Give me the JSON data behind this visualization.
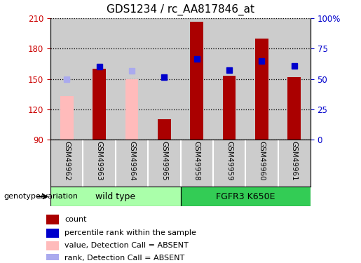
{
  "title": "GDS1234 / rc_AA817846_at",
  "categories": [
    "GSM49962",
    "GSM49963",
    "GSM49964",
    "GSM49965",
    "GSM49958",
    "GSM49959",
    "GSM49960",
    "GSM49961"
  ],
  "ylim": [
    90,
    210
  ],
  "yticks": [
    90,
    120,
    150,
    180,
    210
  ],
  "y2ticks_pct": [
    0,
    25,
    50,
    75,
    100
  ],
  "y2ticklabels": [
    "0",
    "25",
    "50",
    "75",
    "100%"
  ],
  "bar_values": [
    null,
    160,
    null,
    110,
    207,
    153,
    190,
    152
  ],
  "bar_color": "#aa0000",
  "bar_absent_values": [
    133,
    null,
    150,
    null,
    null,
    null,
    null,
    null
  ],
  "bar_absent_color": "#ffbbbb",
  "rank_present": [
    null,
    162,
    null,
    152,
    170,
    159,
    168,
    163
  ],
  "rank_absent": [
    150,
    null,
    158,
    null,
    null,
    null,
    null,
    null
  ],
  "rank_present_color": "#0000cc",
  "rank_absent_color": "#aaaaee",
  "wild_type_label": "wild type",
  "fgfr3_label": "FGFR3 K650E",
  "wild_type_color": "#aaffaa",
  "fgfr3_color": "#33cc55",
  "group_label": "genotype/variation",
  "legend_items": [
    {
      "label": "count",
      "color": "#aa0000"
    },
    {
      "label": "percentile rank within the sample",
      "color": "#0000cc"
    },
    {
      "label": "value, Detection Call = ABSENT",
      "color": "#ffbbbb"
    },
    {
      "label": "rank, Detection Call = ABSENT",
      "color": "#aaaaee"
    }
  ],
  "bar_width": 0.4,
  "rank_marker_size": 6,
  "tick_label_color": "#cccccc",
  "left_axis_color": "#cc0000",
  "right_axis_color": "#0000cc"
}
